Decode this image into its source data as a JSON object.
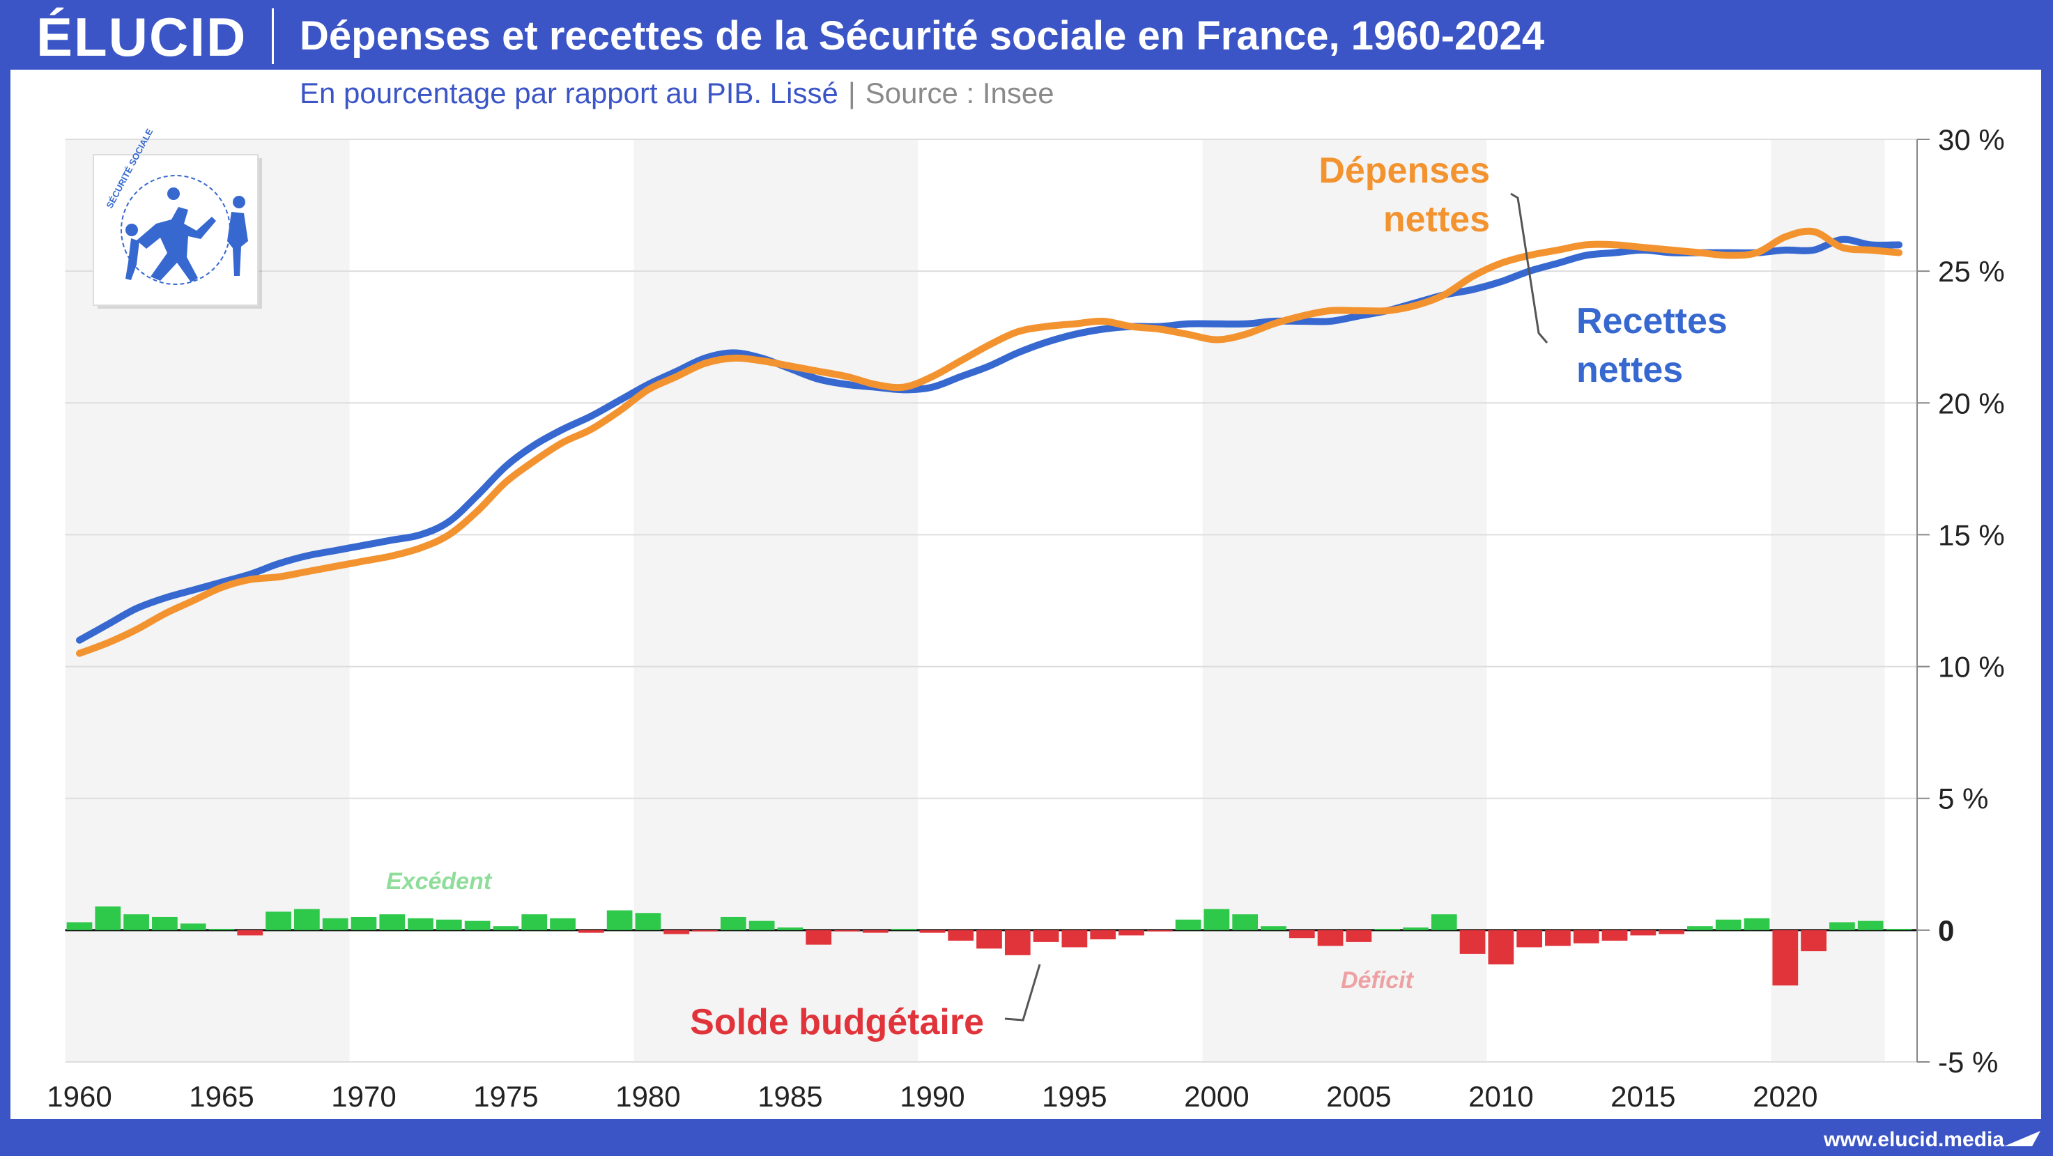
{
  "header": {
    "logo": "ÉLUCID",
    "title": "Dépenses et recettes de la Sécurité sociale en France, 1960-2024",
    "subtitle": "En pourcentage par rapport au PIB. Lissé",
    "source": "Source : Insee"
  },
  "footer": {
    "url": "www.elucid.media"
  },
  "emblem": {
    "text": "SÉCURITÉ SOCIALE",
    "icon": "securite-sociale-logo"
  },
  "colors": {
    "brand": "#3b55c6",
    "depenses": "#f39330",
    "recettes": "#3668d0",
    "surplus": "#2ec84b",
    "deficit": "#e0333a",
    "band": "#f4f4f4"
  },
  "chart_data": {
    "type": "line",
    "title": "Dépenses et recettes de la Sécurité sociale en France, 1960-2024",
    "xlim": [
      1960,
      2024
    ],
    "ylim": [
      -5,
      30
    ],
    "x_ticks": [
      1960,
      1965,
      1970,
      1975,
      1980,
      1985,
      1990,
      1995,
      2000,
      2005,
      2010,
      2015,
      2020
    ],
    "y_ticks": [
      {
        "value": 30,
        "label": "30 %"
      },
      {
        "value": 25,
        "label": "25 %"
      },
      {
        "value": 20,
        "label": "20 %"
      },
      {
        "value": 15,
        "label": "15 %"
      },
      {
        "value": 10,
        "label": "10 %"
      },
      {
        "value": 5,
        "label": "5 %"
      },
      {
        "value": 0,
        "label": "0"
      },
      {
        "value": -5,
        "label": "-5 %"
      }
    ],
    "shaded_decades": [
      [
        1960,
        1970
      ],
      [
        1980,
        1990
      ],
      [
        2000,
        2010
      ],
      [
        2020,
        2024
      ]
    ],
    "series": [
      {
        "name": "Dépenses nettes",
        "color": "#f39330",
        "points": [
          [
            1960,
            10.5
          ],
          [
            1961,
            10.9
          ],
          [
            1962,
            11.4
          ],
          [
            1963,
            12.0
          ],
          [
            1964,
            12.5
          ],
          [
            1965,
            13.0
          ],
          [
            1966,
            13.3
          ],
          [
            1967,
            13.4
          ],
          [
            1968,
            13.6
          ],
          [
            1969,
            13.8
          ],
          [
            1970,
            14.0
          ],
          [
            1971,
            14.2
          ],
          [
            1972,
            14.5
          ],
          [
            1973,
            15.0
          ],
          [
            1974,
            15.9
          ],
          [
            1975,
            17.0
          ],
          [
            1976,
            17.8
          ],
          [
            1977,
            18.5
          ],
          [
            1978,
            19.0
          ],
          [
            1979,
            19.7
          ],
          [
            1980,
            20.5
          ],
          [
            1981,
            21.0
          ],
          [
            1982,
            21.5
          ],
          [
            1983,
            21.7
          ],
          [
            1984,
            21.6
          ],
          [
            1985,
            21.4
          ],
          [
            1986,
            21.2
          ],
          [
            1987,
            21.0
          ],
          [
            1988,
            20.7
          ],
          [
            1989,
            20.6
          ],
          [
            1990,
            21.0
          ],
          [
            1991,
            21.6
          ],
          [
            1992,
            22.2
          ],
          [
            1993,
            22.7
          ],
          [
            1994,
            22.9
          ],
          [
            1995,
            23.0
          ],
          [
            1996,
            23.1
          ],
          [
            1997,
            22.9
          ],
          [
            1998,
            22.8
          ],
          [
            1999,
            22.6
          ],
          [
            2000,
            22.4
          ],
          [
            2001,
            22.6
          ],
          [
            2002,
            23.0
          ],
          [
            2003,
            23.3
          ],
          [
            2004,
            23.5
          ],
          [
            2005,
            23.5
          ],
          [
            2006,
            23.5
          ],
          [
            2007,
            23.7
          ],
          [
            2008,
            24.1
          ],
          [
            2009,
            24.8
          ],
          [
            2010,
            25.3
          ],
          [
            2011,
            25.6
          ],
          [
            2012,
            25.8
          ],
          [
            2013,
            26.0
          ],
          [
            2014,
            26.0
          ],
          [
            2015,
            25.9
          ],
          [
            2016,
            25.8
          ],
          [
            2017,
            25.7
          ],
          [
            2018,
            25.6
          ],
          [
            2019,
            25.7
          ],
          [
            2020,
            26.3
          ],
          [
            2021,
            26.5
          ],
          [
            2022,
            25.9
          ],
          [
            2023,
            25.8
          ],
          [
            2024,
            25.7
          ]
        ]
      },
      {
        "name": "Recettes nettes",
        "color": "#3668d0",
        "points": [
          [
            1960,
            11.0
          ],
          [
            1961,
            11.6
          ],
          [
            1962,
            12.2
          ],
          [
            1963,
            12.6
          ],
          [
            1964,
            12.9
          ],
          [
            1965,
            13.2
          ],
          [
            1966,
            13.5
          ],
          [
            1967,
            13.9
          ],
          [
            1968,
            14.2
          ],
          [
            1969,
            14.4
          ],
          [
            1970,
            14.6
          ],
          [
            1971,
            14.8
          ],
          [
            1972,
            15.0
          ],
          [
            1973,
            15.5
          ],
          [
            1974,
            16.5
          ],
          [
            1975,
            17.6
          ],
          [
            1976,
            18.4
          ],
          [
            1977,
            19.0
          ],
          [
            1978,
            19.5
          ],
          [
            1979,
            20.1
          ],
          [
            1980,
            20.7
          ],
          [
            1981,
            21.2
          ],
          [
            1982,
            21.7
          ],
          [
            1983,
            21.9
          ],
          [
            1984,
            21.7
          ],
          [
            1985,
            21.3
          ],
          [
            1986,
            20.9
          ],
          [
            1987,
            20.7
          ],
          [
            1988,
            20.6
          ],
          [
            1989,
            20.5
          ],
          [
            1990,
            20.6
          ],
          [
            1991,
            21.0
          ],
          [
            1992,
            21.4
          ],
          [
            1993,
            21.9
          ],
          [
            1994,
            22.3
          ],
          [
            1995,
            22.6
          ],
          [
            1996,
            22.8
          ],
          [
            1997,
            22.9
          ],
          [
            1998,
            22.9
          ],
          [
            1999,
            23.0
          ],
          [
            2000,
            23.0
          ],
          [
            2001,
            23.0
          ],
          [
            2002,
            23.1
          ],
          [
            2003,
            23.1
          ],
          [
            2004,
            23.1
          ],
          [
            2005,
            23.3
          ],
          [
            2006,
            23.5
          ],
          [
            2007,
            23.8
          ],
          [
            2008,
            24.1
          ],
          [
            2009,
            24.3
          ],
          [
            2010,
            24.6
          ],
          [
            2011,
            25.0
          ],
          [
            2012,
            25.3
          ],
          [
            2013,
            25.6
          ],
          [
            2014,
            25.7
          ],
          [
            2015,
            25.8
          ],
          [
            2016,
            25.7
          ],
          [
            2017,
            25.7
          ],
          [
            2018,
            25.7
          ],
          [
            2019,
            25.7
          ],
          [
            2020,
            25.8
          ],
          [
            2021,
            25.8
          ],
          [
            2022,
            26.2
          ],
          [
            2023,
            26.0
          ],
          [
            2024,
            26.0
          ]
        ]
      },
      {
        "name": "Solde budgétaire",
        "type": "bar",
        "positive_color": "#2ec84b",
        "negative_color": "#e0333a",
        "positive_label": "Excédent",
        "negative_label": "Déficit",
        "points": [
          [
            1960,
            0.3
          ],
          [
            1961,
            0.9
          ],
          [
            1962,
            0.6
          ],
          [
            1963,
            0.5
          ],
          [
            1964,
            0.25
          ],
          [
            1965,
            0.05
          ],
          [
            1966,
            -0.2
          ],
          [
            1967,
            0.7
          ],
          [
            1968,
            0.8
          ],
          [
            1969,
            0.45
          ],
          [
            1970,
            0.5
          ],
          [
            1971,
            0.6
          ],
          [
            1972,
            0.45
          ],
          [
            1973,
            0.4
          ],
          [
            1974,
            0.35
          ],
          [
            1975,
            0.15
          ],
          [
            1976,
            0.6
          ],
          [
            1977,
            0.45
          ],
          [
            1978,
            -0.1
          ],
          [
            1979,
            0.75
          ],
          [
            1980,
            0.65
          ],
          [
            1981,
            -0.15
          ],
          [
            1982,
            -0.05
          ],
          [
            1983,
            0.5
          ],
          [
            1984,
            0.35
          ],
          [
            1985,
            0.1
          ],
          [
            1986,
            -0.55
          ],
          [
            1987,
            -0.05
          ],
          [
            1988,
            -0.1
          ],
          [
            1989,
            0.05
          ],
          [
            1990,
            -0.1
          ],
          [
            1991,
            -0.4
          ],
          [
            1992,
            -0.7
          ],
          [
            1993,
            -0.95
          ],
          [
            1994,
            -0.45
          ],
          [
            1995,
            -0.65
          ],
          [
            1996,
            -0.35
          ],
          [
            1997,
            -0.2
          ],
          [
            1998,
            -0.05
          ],
          [
            1999,
            0.4
          ],
          [
            2000,
            0.8
          ],
          [
            2001,
            0.6
          ],
          [
            2002,
            0.15
          ],
          [
            2003,
            -0.3
          ],
          [
            2004,
            -0.6
          ],
          [
            2005,
            -0.45
          ],
          [
            2006,
            0.05
          ],
          [
            2007,
            0.1
          ],
          [
            2008,
            0.6
          ],
          [
            2009,
            -0.9
          ],
          [
            2010,
            -1.3
          ],
          [
            2011,
            -0.65
          ],
          [
            2012,
            -0.6
          ],
          [
            2013,
            -0.5
          ],
          [
            2014,
            -0.4
          ],
          [
            2015,
            -0.2
          ],
          [
            2016,
            -0.15
          ],
          [
            2017,
            0.15
          ],
          [
            2018,
            0.4
          ],
          [
            2019,
            0.45
          ],
          [
            2020,
            -2.1
          ],
          [
            2021,
            -0.8
          ],
          [
            2022,
            0.3
          ],
          [
            2023,
            0.35
          ],
          [
            2024,
            0.05
          ]
        ]
      }
    ],
    "annotations": [
      "Dépenses nettes",
      "Recettes nettes",
      "Solde budgétaire",
      "Excédent",
      "Déficit"
    ],
    "grid": true,
    "y_axis_position": "right"
  },
  "labels": {
    "depenses_line1": "Dépenses",
    "depenses_line2": "nettes",
    "recettes_line1": "Recettes",
    "recettes_line2": "nettes",
    "solde": "Solde budgétaire",
    "excedent": "Excédent",
    "deficit": "Déficit"
  }
}
